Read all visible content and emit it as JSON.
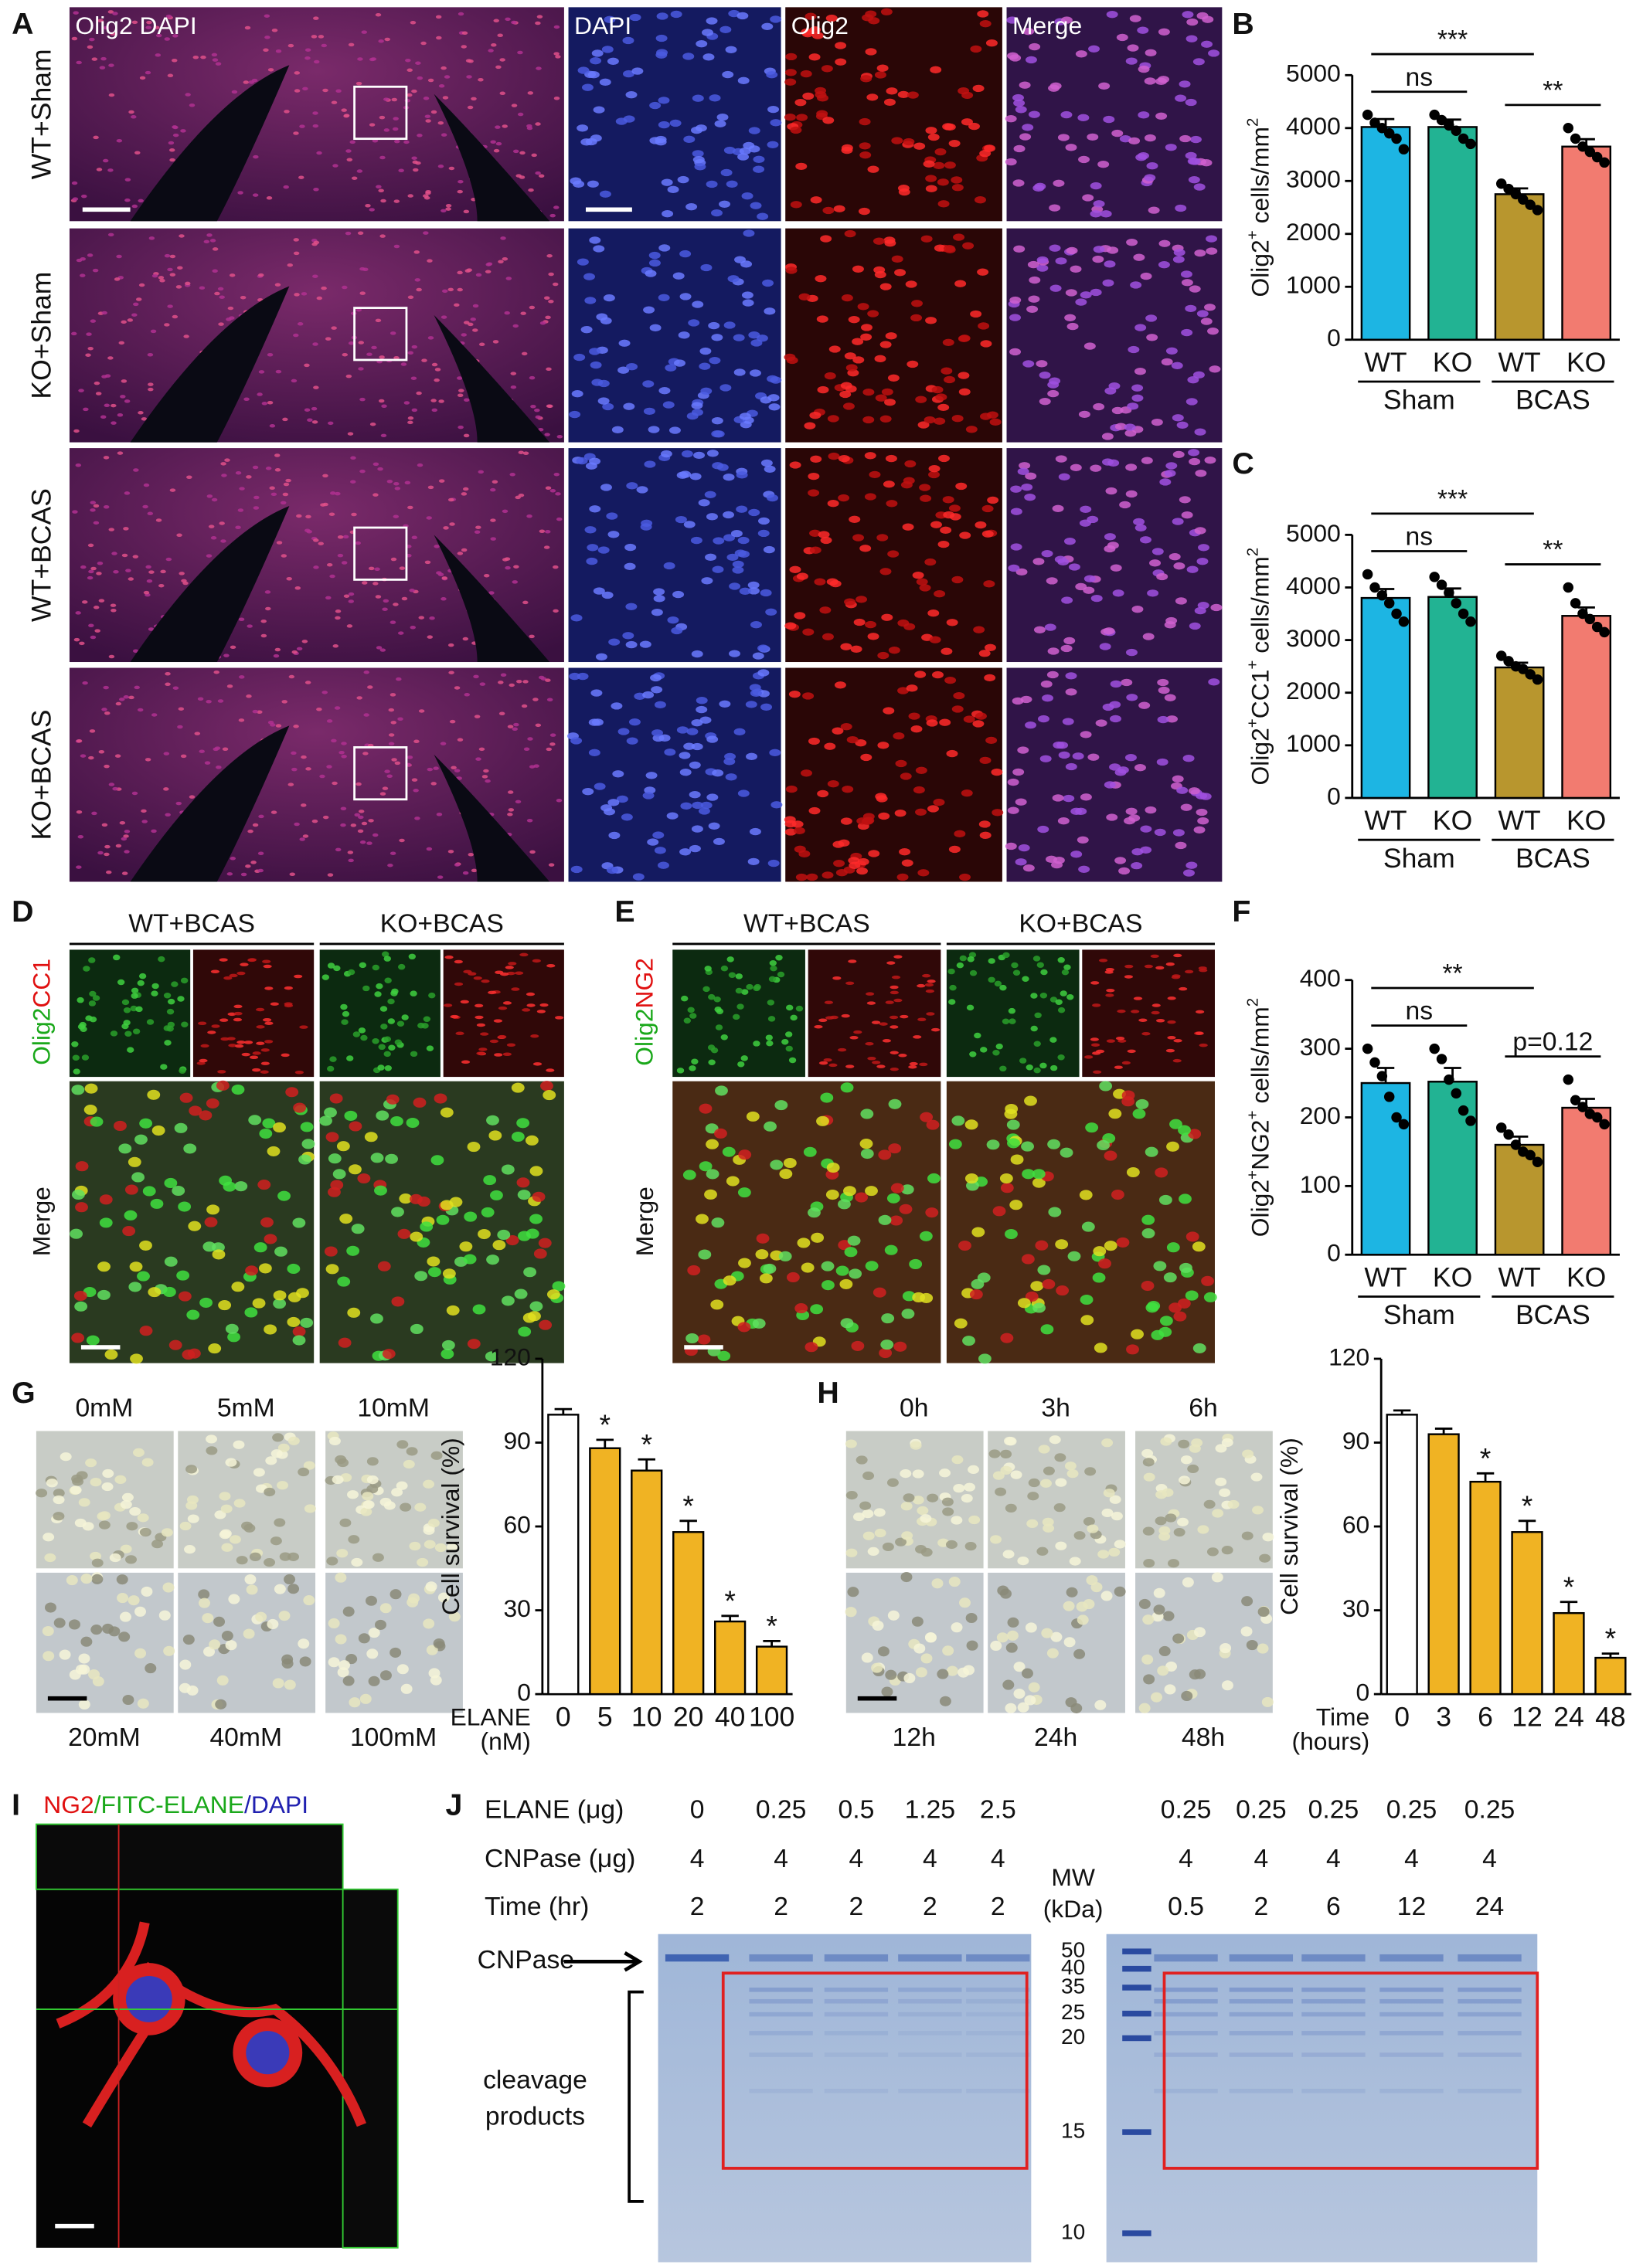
{
  "panel_labels": [
    "A",
    "B",
    "C",
    "D",
    "E",
    "F",
    "G",
    "H",
    "I",
    "J"
  ],
  "panel_a": {
    "column_titles": [
      "Olig2 DAPI",
      "DAPI",
      "Olig2",
      "Merge"
    ],
    "row_labels": [
      "WT+Sham",
      "KO+Sham",
      "WT+BCAS",
      "KO+BCAS"
    ]
  },
  "panel_d": {
    "groups": [
      "WT+BCAS",
      "KO+BCAS"
    ],
    "stain_labels": [
      "Olig2",
      "CC1"
    ],
    "merge_label": "Merge"
  },
  "panel_e": {
    "groups": [
      "WT+BCAS",
      "KO+BCAS"
    ],
    "stain_labels": [
      "Olig2",
      "NG2"
    ],
    "merge_label": "Merge"
  },
  "panel_g": {
    "top_labels": [
      "0mM",
      "5mM",
      "10mM"
    ],
    "bottom_labels": [
      "20mM",
      "40mM",
      "100mM"
    ]
  },
  "panel_h": {
    "top_labels": [
      "0h",
      "3h",
      "6h"
    ],
    "bottom_labels": [
      "12h",
      "24h",
      "48h"
    ]
  },
  "panel_i": {
    "title_parts": [
      "NG2",
      "/FITC-ELANE",
      "/DAPI"
    ]
  },
  "panel_j": {
    "rows": [
      {
        "label": "ELANE (μg)",
        "gel1": [
          "0",
          "0.25",
          "0.5",
          "1.25",
          "2.5"
        ],
        "gel2": [
          "0.25",
          "0.25",
          "0.25",
          "0.25",
          "0.25"
        ]
      },
      {
        "label": "CNPase (μg)",
        "gel1": [
          "4",
          "4",
          "4",
          "4",
          "4"
        ],
        "gel2": [
          "4",
          "4",
          "4",
          "4",
          "4"
        ]
      },
      {
        "label": "Time (hr)",
        "gel1": [
          "2",
          "2",
          "2",
          "2",
          "2"
        ],
        "gel2": [
          "0.5",
          "2",
          "6",
          "12",
          "24"
        ]
      }
    ],
    "mw_title": [
      "MW",
      "(kDa)"
    ],
    "mw_markers": [
      "50",
      "40",
      "35",
      "25",
      "20",
      "15",
      "10"
    ],
    "cnpase_label": "CNPase",
    "cleavage_label": [
      "cleavage",
      "products"
    ]
  },
  "chart_data": [
    {
      "type": "bar",
      "y_label": [
        {
          "text": "Olig2"
        },
        {
          "text": "+",
          "sup": true
        },
        {
          "text": " cells/mm"
        },
        {
          "text": "2",
          "sup": true
        }
      ],
      "categories": [
        "WT",
        "KO",
        "WT",
        "KO"
      ],
      "groups": [
        "Sham",
        "BCAS"
      ],
      "values": [
        4020,
        4020,
        2750,
        3650
      ],
      "errors": [
        150,
        140,
        110,
        140
      ],
      "points": [
        [
          4250,
          4100,
          4000,
          3900,
          3800,
          3600
        ],
        [
          4250,
          4150,
          4050,
          3950,
          3800,
          3700
        ],
        [
          2950,
          2850,
          2750,
          2650,
          2550,
          2450
        ],
        [
          4000,
          3800,
          3650,
          3550,
          3450,
          3350
        ]
      ],
      "colors": [
        "#1db5e3",
        "#22b393",
        "#b8962e",
        "#f27b70"
      ],
      "ylim": [
        0,
        5000
      ],
      "yticks": [
        0,
        1000,
        2000,
        3000,
        4000,
        5000
      ],
      "annotations": [
        {
          "text": "***",
          "pair": [
            0,
            2
          ]
        },
        {
          "text": "ns",
          "pair": [
            0,
            1
          ]
        },
        {
          "text": "**",
          "pair": [
            2,
            3
          ]
        }
      ]
    },
    {
      "type": "bar",
      "y_label": [
        {
          "text": "Olig2"
        },
        {
          "text": "+",
          "sup": true
        },
        {
          "text": "CC1"
        },
        {
          "text": "+",
          "sup": true
        },
        {
          "text": " cells/mm"
        },
        {
          "text": "2",
          "sup": true
        }
      ],
      "categories": [
        "WT",
        "KO",
        "WT",
        "KO"
      ],
      "groups": [
        "Sham",
        "BCAS"
      ],
      "values": [
        3800,
        3820,
        2480,
        3460
      ],
      "errors": [
        170,
        160,
        90,
        160
      ],
      "points": [
        [
          4250,
          4000,
          3850,
          3700,
          3500,
          3350
        ],
        [
          4200,
          4050,
          3900,
          3700,
          3500,
          3350
        ],
        [
          2700,
          2600,
          2500,
          2450,
          2350,
          2250
        ],
        [
          4000,
          3700,
          3500,
          3400,
          3250,
          3150
        ]
      ],
      "colors": [
        "#1db5e3",
        "#22b393",
        "#b8962e",
        "#f27b70"
      ],
      "ylim": [
        0,
        5000
      ],
      "yticks": [
        0,
        1000,
        2000,
        3000,
        4000,
        5000
      ],
      "annotations": [
        {
          "text": "***",
          "pair": [
            0,
            2
          ]
        },
        {
          "text": "ns",
          "pair": [
            0,
            1
          ]
        },
        {
          "text": "**",
          "pair": [
            2,
            3
          ]
        }
      ]
    },
    {
      "type": "bar",
      "y_label": [
        {
          "text": "Olig2"
        },
        {
          "text": "+",
          "sup": true
        },
        {
          "text": "NG2"
        },
        {
          "text": "+",
          "sup": true
        },
        {
          "text": " cells/mm"
        },
        {
          "text": "2",
          "sup": true
        }
      ],
      "categories": [
        "WT",
        "KO",
        "WT",
        "KO"
      ],
      "groups": [
        "Sham",
        "BCAS"
      ],
      "values": [
        250,
        252,
        160,
        214
      ],
      "errors": [
        22,
        20,
        12,
        13
      ],
      "points": [
        [
          300,
          280,
          260,
          230,
          200,
          190
        ],
        [
          300,
          285,
          255,
          235,
          210,
          195
        ],
        [
          185,
          175,
          160,
          150,
          145,
          135
        ],
        [
          255,
          225,
          215,
          205,
          200,
          190
        ]
      ],
      "colors": [
        "#1db5e3",
        "#22b393",
        "#b8962e",
        "#f27b70"
      ],
      "ylim": [
        0,
        400
      ],
      "yticks": [
        0,
        100,
        200,
        300,
        400
      ],
      "annotations": [
        {
          "text": "**",
          "pair": [
            0,
            2
          ]
        },
        {
          "text": "ns",
          "pair": [
            0,
            1
          ]
        },
        {
          "text": "p=0.12",
          "pair": [
            2,
            3
          ]
        }
      ]
    },
    {
      "type": "bar",
      "y_label": [
        {
          "text": "Cell survival (%)"
        }
      ],
      "x_label": [
        "ELANE",
        "(nM)"
      ],
      "categories": [
        "0",
        "5",
        "10",
        "20",
        "40",
        "100"
      ],
      "values": [
        100,
        88,
        80,
        58,
        26,
        17
      ],
      "errors": [
        2,
        3,
        4,
        4,
        2,
        2
      ],
      "colors": [
        "#ffffff",
        "#f0b323",
        "#f0b323",
        "#f0b323",
        "#f0b323",
        "#f0b323"
      ],
      "significance": [
        null,
        "*",
        "*",
        "*",
        "*",
        "*"
      ],
      "ylim": [
        0,
        120
      ],
      "yticks": [
        0,
        30,
        60,
        90,
        120
      ]
    },
    {
      "type": "bar",
      "y_label": [
        {
          "text": "Cell survival (%)"
        }
      ],
      "x_label": [
        "Time",
        "(hours)"
      ],
      "categories": [
        "0",
        "3",
        "6",
        "12",
        "24",
        "48"
      ],
      "values": [
        100,
        93,
        76,
        58,
        29,
        13
      ],
      "errors": [
        1.5,
        2,
        3,
        4,
        4,
        1.5
      ],
      "colors": [
        "#ffffff",
        "#f0b323",
        "#f0b323",
        "#f0b323",
        "#f0b323",
        "#f0b323"
      ],
      "significance": [
        null,
        null,
        "*",
        "*",
        "*",
        "*"
      ],
      "ylim": [
        0,
        120
      ],
      "yticks": [
        0,
        30,
        60,
        90,
        120
      ]
    }
  ]
}
